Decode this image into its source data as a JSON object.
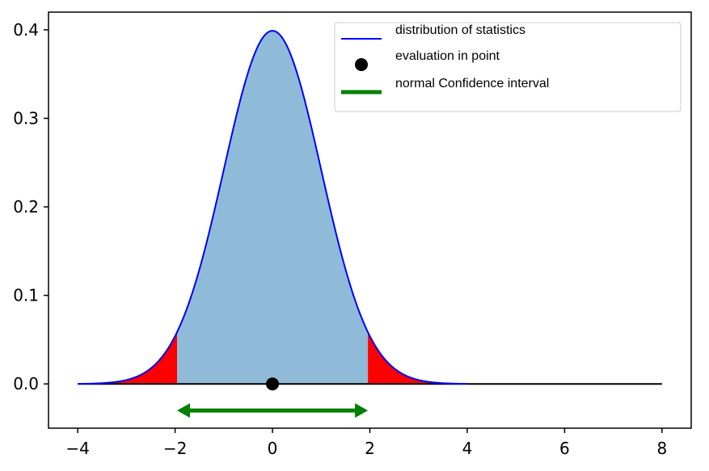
{
  "chart_data": {
    "type": "area",
    "x_ticks": [
      "−4",
      "−2",
      "0",
      "2",
      "4",
      "6",
      "8"
    ],
    "x_tick_values": [
      -4,
      -2,
      0,
      2,
      4,
      6,
      8
    ],
    "y_ticks": [
      "0.0",
      "0.1",
      "0.2",
      "0.3",
      "0.4"
    ],
    "y_tick_values": [
      0.0,
      0.1,
      0.2,
      0.3,
      0.4
    ],
    "xlim": [
      -4.6,
      8.6
    ],
    "ylim": [
      -0.05,
      0.42
    ],
    "grid": false,
    "legend_placement": "top-right",
    "colors": {
      "curve": "#0000ff",
      "fill": "#8fbbd9",
      "tails": "#ff0000",
      "point": "#000000",
      "interval": "#008000",
      "baseline": "#000000"
    },
    "series": [
      {
        "name": "distribution of statistics",
        "kind": "normal pdf curve",
        "mean": 0,
        "std": 1,
        "x_range": [
          -4,
          4
        ],
        "peak_y": 0.399
      },
      {
        "name": "evaluation in point",
        "kind": "point",
        "x": 0,
        "y": 0
      },
      {
        "name": "normal Confidence interval",
        "kind": "double arrow",
        "x_start": -1.96,
        "x_end": 1.96,
        "y": -0.03
      }
    ],
    "shaded_regions": [
      {
        "label": "central",
        "x_range": [
          -1.96,
          1.96
        ],
        "color": "#8fbbd9"
      },
      {
        "label": "left tail",
        "x_range": [
          -4,
          -1.96
        ],
        "color": "#ff0000"
      },
      {
        "label": "right tail",
        "x_range": [
          1.96,
          4
        ],
        "color": "#ff0000"
      }
    ],
    "baseline_range": [
      -4,
      8
    ],
    "legend": [
      {
        "label": "distribution of statistics",
        "marker": "line"
      },
      {
        "label": "evaluation in point",
        "marker": "dot"
      },
      {
        "label": "normal Confidence interval",
        "marker": "thick-line"
      }
    ]
  }
}
